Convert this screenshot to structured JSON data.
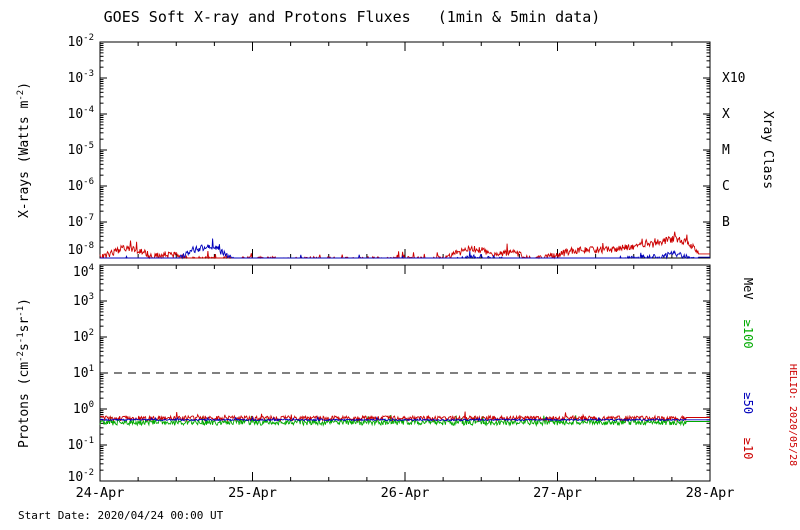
{
  "title": "GOES Soft X-ray and Protons Fluxes   (1min & 5min data)",
  "footer": {
    "start_date": "Start Date: 2020/04/24 00:00 UT"
  },
  "watermark": {
    "text": "HELIO: 2020/05/28",
    "color": "#cc0000"
  },
  "colors": {
    "red": "#cc0000",
    "blue": "#0000bb",
    "green": "#00aa00",
    "axis": "#000000",
    "background": "#ffffff"
  },
  "chart_data": [
    {
      "type": "line",
      "panel": "xray",
      "ylabel_parts": [
        {
          "t": "X-rays (Watts m"
        },
        {
          "sup": "-2"
        },
        {
          "t": ")"
        }
      ],
      "y_log_range": [
        -8,
        -2
      ],
      "x_range_days": [
        0,
        4
      ],
      "x_tick_labels": [
        "24-Apr",
        "25-Apr",
        "26-Apr",
        "27-Apr",
        "28-Apr"
      ],
      "x_minor_day": 0.25,
      "grid": "off",
      "right_axis_title": "Xray Class",
      "class_labels": [
        {
          "text": "X10",
          "exp": -3
        },
        {
          "text": "X",
          "exp": -4
        },
        {
          "text": "M",
          "exp": -5
        },
        {
          "text": "C",
          "exp": -6
        },
        {
          "text": "B",
          "exp": -7
        }
      ],
      "series": [
        {
          "name": "xray-long",
          "color": "#cc0000",
          "baseline": 9e-09,
          "noise": 0.22,
          "bumps": [
            {
              "t": 0.18,
              "a": 1.1,
              "w": 0.09
            },
            {
              "t": 0.45,
              "a": 0.4,
              "w": 0.07
            },
            {
              "t": 2.45,
              "a": 1.0,
              "w": 0.1
            },
            {
              "t": 2.7,
              "a": 0.7,
              "w": 0.05
            },
            {
              "t": 3.15,
              "a": 0.8,
              "w": 0.12
            },
            {
              "t": 3.55,
              "a": 1.4,
              "w": 0.18
            },
            {
              "t": 3.78,
              "a": 2.1,
              "w": 0.09
            }
          ],
          "flat_from": 3.92,
          "flat_value": 1.3e-08
        },
        {
          "name": "xray-short",
          "color": "#0000bb",
          "baseline": 8e-09,
          "noise": 0.2,
          "bumps": [
            {
              "t": 0.6,
              "a": 0.6,
              "w": 0.05
            },
            {
              "t": 0.72,
              "a": 1.6,
              "w": 0.07
            },
            {
              "t": 2.5,
              "a": 0.3,
              "w": 0.1
            },
            {
              "t": 3.6,
              "a": 0.3,
              "w": 0.12
            },
            {
              "t": 3.78,
              "a": 0.5,
              "w": 0.06
            }
          ],
          "flat_from": 3.92,
          "flat_value": 1.05e-08
        }
      ]
    },
    {
      "type": "line",
      "panel": "protons",
      "ylabel_parts": [
        {
          "t": "Protons (cm"
        },
        {
          "sup": "-2"
        },
        {
          "t": "s"
        },
        {
          "sup": "-1"
        },
        {
          "t": "sr"
        },
        {
          "sup": "-1"
        },
        {
          "t": ")"
        }
      ],
      "y_log_range": [
        -2,
        4
      ],
      "x_range_days": [
        0,
        4
      ],
      "x_tick_labels": [
        "24-Apr",
        "25-Apr",
        "26-Apr",
        "27-Apr",
        "28-Apr"
      ],
      "x_minor_day": 0.25,
      "grid": "off",
      "dashed_line_at": 10,
      "right_axis_unit": "MeV",
      "right_labels": [
        {
          "text": "MeV",
          "color": "#000000"
        },
        {
          "text": "≥100",
          "color": "#00aa00"
        },
        {
          "text": "≥50",
          "color": "#0000bb"
        },
        {
          "text": "≥10",
          "color": "#cc0000"
        }
      ],
      "series": [
        {
          "name": "protons-ge100MeV",
          "color": "#00aa00",
          "baseline": 0.43,
          "noise": 0.18,
          "bumps": [],
          "flat_from": 3.84,
          "flat_value": 0.45
        },
        {
          "name": "protons-ge10MeV",
          "color": "#cc0000",
          "baseline": 0.56,
          "noise": 0.15,
          "bumps": [],
          "flat_from": 3.84,
          "flat_value": 0.58
        },
        {
          "name": "protons-ge50MeV",
          "color": "#0000bb",
          "baseline": 0.5,
          "noise": 0.05,
          "bumps": [],
          "flat_from": 3.84,
          "flat_value": 0.5
        }
      ]
    }
  ]
}
